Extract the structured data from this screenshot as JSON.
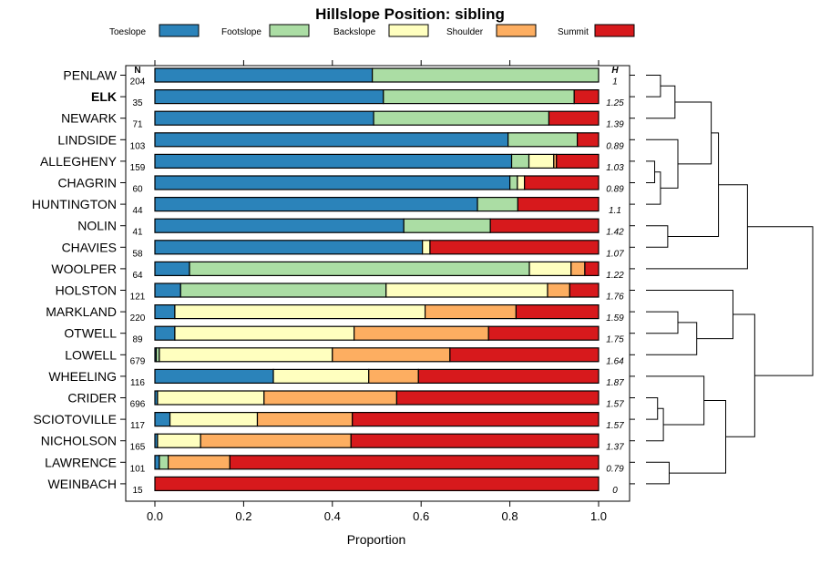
{
  "chart_data": {
    "type": "bar",
    "orientation": "horizontal",
    "stacked": true,
    "title": "Hillslope Position: sibling",
    "xlabel": "Proportion",
    "xlim": [
      0,
      1
    ],
    "x_ticks": [
      "0.0",
      "0.2",
      "0.4",
      "0.6",
      "0.8",
      "1.0"
    ],
    "x_tick_values": [
      0,
      0.2,
      0.4,
      0.6,
      0.8,
      1.0
    ],
    "n_header": "N",
    "h_header": "H",
    "highlight": "ELK",
    "classes": [
      {
        "name": "Toeslope",
        "color": "#2b83ba"
      },
      {
        "name": "Footslope",
        "color": "#abdda4"
      },
      {
        "name": "Backslope",
        "color": "#ffffbf"
      },
      {
        "name": "Shoulder",
        "color": "#fdae61"
      },
      {
        "name": "Summit",
        "color": "#d7191c"
      }
    ],
    "rows": [
      {
        "name": "PENLAW",
        "n": "204",
        "h": "1",
        "values": [
          0.49,
          0.51,
          0,
          0,
          0
        ]
      },
      {
        "name": "ELK",
        "n": "35",
        "h": "1.25",
        "values": [
          0.515,
          0.43,
          0,
          0,
          0.055
        ]
      },
      {
        "name": "NEWARK",
        "n": "71",
        "h": "1.39",
        "values": [
          0.493,
          0.395,
          0,
          0,
          0.112
        ]
      },
      {
        "name": "LINDSIDE",
        "n": "103",
        "h": "0.89",
        "values": [
          0.796,
          0.156,
          0,
          0,
          0.048
        ]
      },
      {
        "name": "ALLEGHENY",
        "n": "159",
        "h": "1.03",
        "values": [
          0.804,
          0.039,
          0.056,
          0.006,
          0.095
        ]
      },
      {
        "name": "CHAGRIN",
        "n": "60",
        "h": "0.89",
        "values": [
          0.8,
          0.017,
          0.016,
          0,
          0.167
        ]
      },
      {
        "name": "HUNTINGTON",
        "n": "44",
        "h": "1.1",
        "values": [
          0.727,
          0.091,
          0,
          0,
          0.182
        ]
      },
      {
        "name": "NOLIN",
        "n": "41",
        "h": "1.42",
        "values": [
          0.561,
          0.195,
          0,
          0,
          0.244
        ]
      },
      {
        "name": "CHAVIES",
        "n": "58",
        "h": "1.07",
        "values": [
          0.603,
          0,
          0.017,
          0,
          0.38
        ]
      },
      {
        "name": "WOOLPER",
        "n": "64",
        "h": "1.22",
        "values": [
          0.078,
          0.766,
          0.094,
          0.031,
          0.031
        ]
      },
      {
        "name": "HOLSTON",
        "n": "121",
        "h": "1.76",
        "values": [
          0.058,
          0.463,
          0.364,
          0.05,
          0.065
        ]
      },
      {
        "name": "MARKLAND",
        "n": "220",
        "h": "1.59",
        "values": [
          0.045,
          0,
          0.564,
          0.205,
          0.186
        ]
      },
      {
        "name": "OTWELL",
        "n": "89",
        "h": "1.75",
        "values": [
          0.045,
          0,
          0.404,
          0.303,
          0.248
        ]
      },
      {
        "name": "LOWELL",
        "n": "679",
        "h": "1.64",
        "values": [
          0.003,
          0.007,
          0.39,
          0.265,
          0.335
        ]
      },
      {
        "name": "WHEELING",
        "n": "116",
        "h": "1.87",
        "values": [
          0.267,
          0,
          0.215,
          0.112,
          0.406
        ]
      },
      {
        "name": "CRIDER",
        "n": "696",
        "h": "1.57",
        "values": [
          0.006,
          0,
          0.24,
          0.299,
          0.455
        ]
      },
      {
        "name": "SCIOTOVILLE",
        "n": "117",
        "h": "1.57",
        "values": [
          0.034,
          0,
          0.197,
          0.214,
          0.555
        ]
      },
      {
        "name": "NICHOLSON",
        "n": "165",
        "h": "1.37",
        "values": [
          0.006,
          0,
          0.097,
          0.339,
          0.558
        ]
      },
      {
        "name": "LAWRENCE",
        "n": "101",
        "h": "0.79",
        "values": [
          0.01,
          0.02,
          0,
          0.139,
          0.831
        ]
      },
      {
        "name": "WEINBACH",
        "n": "15",
        "h": "0",
        "values": [
          0,
          0,
          0,
          0,
          1
        ]
      }
    ],
    "dendrogram_merges": [
      [
        0,
        1,
        1
      ],
      [
        2,
        20,
        2
      ],
      [
        4,
        5,
        0.6
      ],
      [
        6,
        22,
        1.0
      ],
      [
        3,
        23,
        2.2
      ],
      [
        7,
        8,
        1.5
      ],
      [
        21,
        24,
        4.5
      ],
      [
        25,
        26,
        5.0
      ],
      [
        9,
        27,
        7.0
      ],
      [
        11,
        12,
        2.2
      ],
      [
        13,
        29,
        3.5
      ],
      [
        15,
        16,
        0.8
      ],
      [
        31,
        17,
        1.2
      ],
      [
        18,
        19,
        1.6
      ],
      [
        14,
        32,
        4.0
      ],
      [
        33,
        34,
        5.5
      ],
      [
        10,
        30,
        6.0
      ],
      [
        35,
        36,
        7.5
      ],
      [
        28,
        37,
        11.5
      ]
    ]
  }
}
